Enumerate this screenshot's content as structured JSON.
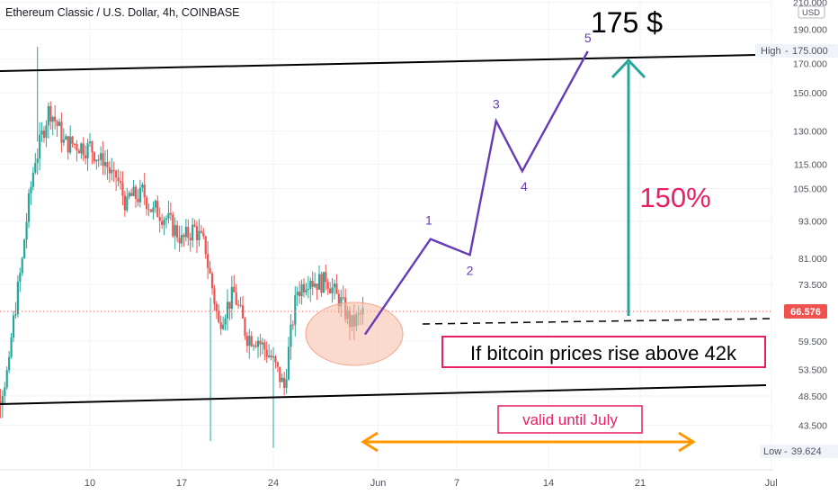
{
  "header": {
    "title": "Ethereum Classic / U.S. Dollar, 4h, COINBASE",
    "currency": "USD"
  },
  "colors": {
    "up": "#26a69a",
    "down": "#ef5350",
    "projection": "#673ab7",
    "target_arrow": "#26a69a",
    "callout": "#e91e63",
    "range_arrow": "#ff9800",
    "channel": "#000000",
    "current_price": "#ef5350"
  },
  "chart_data": {
    "type": "candlestick",
    "title": "Ethereum Classic / U.S. Dollar, 4h, COINBASE",
    "scale": "log",
    "ylim": [
      39.624,
      210
    ],
    "y_ticks": [
      "210.000",
      "190.000",
      "170.000",
      "150.000",
      "130.000",
      "115.000",
      "105.000",
      "93.000",
      "81.000",
      "73.500",
      "66.576",
      "59.500",
      "53.500",
      "48.500",
      "43.500",
      "39.624"
    ],
    "x_ticks": [
      "10",
      "17",
      "24",
      "Jun",
      "7",
      "14",
      "21",
      "Jul"
    ],
    "high_label": "High",
    "high_value": "175.000",
    "low_label": "Low",
    "low_value": "39.624",
    "last_price": "66.576",
    "wave_points": [
      {
        "label": "",
        "date": "May 31",
        "price": 61
      },
      {
        "label": "1",
        "date": "Jun 5",
        "price": 87
      },
      {
        "label": "2",
        "date": "Jun 8",
        "price": 82
      },
      {
        "label": "3",
        "date": "Jun 10",
        "price": 135
      },
      {
        "label": "4",
        "date": "Jun 12",
        "price": 112
      },
      {
        "label": "5",
        "date": "Jun 17",
        "price": 175
      }
    ],
    "closes_by_day": [
      {
        "day": "May 2",
        "close": 47
      },
      {
        "day": "May 3",
        "close": 54
      },
      {
        "day": "May 4",
        "close": 80
      },
      {
        "day": "May 5",
        "close": 118
      },
      {
        "day": "May 6",
        "close": 140
      },
      {
        "day": "May 7",
        "close": 128
      },
      {
        "day": "May 8",
        "close": 124
      },
      {
        "day": "May 9",
        "close": 122
      },
      {
        "day": "May 10",
        "close": 116
      },
      {
        "day": "May 11",
        "close": 108
      },
      {
        "day": "May 12",
        "close": 98
      },
      {
        "day": "May 13",
        "close": 102
      },
      {
        "day": "May 14",
        "close": 96
      },
      {
        "day": "May 15",
        "close": 94
      },
      {
        "day": "May 16",
        "close": 88
      },
      {
        "day": "May 17",
        "close": 90
      },
      {
        "day": "May 18",
        "close": 84
      },
      {
        "day": "May 19",
        "close": 63
      },
      {
        "day": "May 20",
        "close": 70
      },
      {
        "day": "May 21",
        "close": 62
      },
      {
        "day": "May 22",
        "close": 60
      },
      {
        "day": "May 23",
        "close": 56
      },
      {
        "day": "May 24",
        "close": 50
      },
      {
        "day": "May 25",
        "close": 72
      },
      {
        "day": "May 26",
        "close": 76
      },
      {
        "day": "May 27",
        "close": 74
      },
      {
        "day": "May 28",
        "close": 70
      },
      {
        "day": "May 29",
        "close": 64
      },
      {
        "day": "May 30",
        "close": 66
      }
    ]
  },
  "annotations": {
    "target_text": "175 $",
    "percent_text": "150%",
    "condition_text": "If bitcoin prices rise above 42k",
    "validity_text": "valid until July"
  }
}
